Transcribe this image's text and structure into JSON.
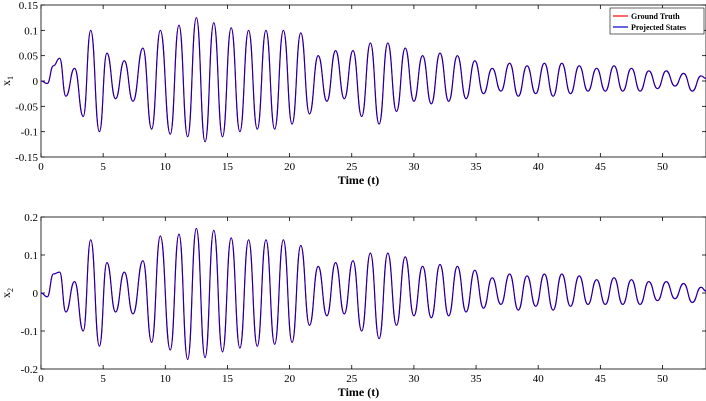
{
  "chart_data": [
    {
      "type": "line",
      "ylabel": "x",
      "ylabel_sub": "1",
      "xlabel": "Time (t)",
      "xlim": [
        0,
        53.5
      ],
      "ylim": [
        -0.15,
        0.15
      ],
      "xticks": [
        0,
        5,
        10,
        15,
        20,
        25,
        30,
        35,
        40,
        45,
        50
      ],
      "yticks": [
        -0.15,
        -0.1,
        -0.05,
        0,
        0.05,
        0.1,
        0.15
      ],
      "ytick_labels": [
        "-0.15",
        "-0.1",
        "-0.05",
        "0",
        "0.05",
        "0.1",
        "0.15"
      ],
      "legend": {
        "position": "top-right",
        "entries": [
          {
            "label": "Ground Truth",
            "color": "#ff0000"
          },
          {
            "label": "Projected States",
            "color": "#0000cc"
          }
        ]
      },
      "series": [
        {
          "name": "Ground Truth",
          "color": "#ff0000",
          "x": [
            0,
            0.5,
            1.0,
            1.5,
            2.0,
            2.7,
            3.4,
            4.0,
            4.7,
            5.3,
            6.0,
            6.7,
            7.4,
            8.2,
            8.9,
            9.6,
            10.4,
            11.1,
            11.8,
            12.5,
            13.2,
            13.9,
            14.6,
            15.3,
            16.0,
            16.7,
            17.4,
            18.1,
            18.8,
            19.5,
            20.2,
            20.9,
            21.6,
            22.3,
            23.0,
            23.7,
            24.4,
            25.1,
            25.8,
            26.5,
            27.2,
            27.9,
            28.6,
            29.3,
            30.0,
            30.7,
            31.4,
            32.1,
            32.8,
            33.5,
            34.2,
            34.9,
            35.6,
            36.3,
            37.0,
            37.7,
            38.4,
            39.1,
            39.8,
            40.5,
            41.2,
            41.9,
            42.6,
            43.3,
            44.0,
            44.7,
            45.4,
            46.1,
            46.8,
            47.5,
            48.2,
            48.9,
            49.6,
            50.3,
            51.0,
            51.7,
            52.4,
            53.1,
            53.5
          ],
          "y": [
            0,
            -0.005,
            0.03,
            0.045,
            -0.03,
            0.025,
            -0.07,
            0.1,
            -0.1,
            0.055,
            -0.035,
            0.04,
            -0.04,
            0.065,
            -0.095,
            0.1,
            -0.105,
            0.11,
            -0.11,
            0.125,
            -0.12,
            0.115,
            -0.11,
            0.105,
            -0.1,
            0.1,
            -0.095,
            0.1,
            -0.095,
            0.1,
            -0.085,
            0.095,
            -0.065,
            0.05,
            -0.04,
            0.06,
            -0.035,
            0.06,
            -0.07,
            0.075,
            -0.085,
            0.075,
            -0.06,
            0.065,
            -0.04,
            0.05,
            -0.045,
            0.055,
            -0.04,
            0.05,
            -0.035,
            0.04,
            -0.025,
            0.025,
            -0.02,
            0.035,
            -0.03,
            0.03,
            -0.025,
            0.035,
            -0.03,
            0.035,
            -0.025,
            0.03,
            -0.02,
            0.025,
            -0.02,
            0.03,
            -0.02,
            0.025,
            -0.02,
            0.02,
            -0.015,
            0.02,
            -0.01,
            0.015,
            -0.02,
            0.01,
            0.005
          ]
        },
        {
          "name": "Projected States",
          "color": "#0000cc",
          "x": [
            0,
            0.5,
            1.0,
            1.5,
            2.0,
            2.7,
            3.4,
            4.0,
            4.7,
            5.3,
            6.0,
            6.7,
            7.4,
            8.2,
            8.9,
            9.6,
            10.4,
            11.1,
            11.8,
            12.5,
            13.2,
            13.9,
            14.6,
            15.3,
            16.0,
            16.7,
            17.4,
            18.1,
            18.8,
            19.5,
            20.2,
            20.9,
            21.6,
            22.3,
            23.0,
            23.7,
            24.4,
            25.1,
            25.8,
            26.5,
            27.2,
            27.9,
            28.6,
            29.3,
            30.0,
            30.7,
            31.4,
            32.1,
            32.8,
            33.5,
            34.2,
            34.9,
            35.6,
            36.3,
            37.0,
            37.7,
            38.4,
            39.1,
            39.8,
            40.5,
            41.2,
            41.9,
            42.6,
            43.3,
            44.0,
            44.7,
            45.4,
            46.1,
            46.8,
            47.5,
            48.2,
            48.9,
            49.6,
            50.3,
            51.0,
            51.7,
            52.4,
            53.1,
            53.5
          ],
          "y": [
            0,
            -0.005,
            0.03,
            0.045,
            -0.03,
            0.025,
            -0.07,
            0.1,
            -0.1,
            0.055,
            -0.035,
            0.04,
            -0.04,
            0.065,
            -0.095,
            0.1,
            -0.105,
            0.11,
            -0.11,
            0.125,
            -0.12,
            0.115,
            -0.11,
            0.105,
            -0.1,
            0.1,
            -0.095,
            0.1,
            -0.095,
            0.1,
            -0.085,
            0.095,
            -0.065,
            0.05,
            -0.04,
            0.06,
            -0.035,
            0.06,
            -0.07,
            0.075,
            -0.085,
            0.075,
            -0.06,
            0.065,
            -0.04,
            0.05,
            -0.045,
            0.055,
            -0.04,
            0.05,
            -0.035,
            0.04,
            -0.025,
            0.025,
            -0.02,
            0.035,
            -0.03,
            0.03,
            -0.025,
            0.035,
            -0.03,
            0.035,
            -0.025,
            0.03,
            -0.02,
            0.025,
            -0.02,
            0.03,
            -0.02,
            0.025,
            -0.02,
            0.02,
            -0.015,
            0.02,
            -0.01,
            0.015,
            -0.02,
            0.01,
            0.005
          ]
        }
      ]
    },
    {
      "type": "line",
      "ylabel": "x",
      "ylabel_sub": "2",
      "xlabel": "Time (t)",
      "xlim": [
        0,
        53.5
      ],
      "ylim": [
        -0.2,
        0.2
      ],
      "xticks": [
        0,
        5,
        10,
        15,
        20,
        25,
        30,
        35,
        40,
        45,
        50
      ],
      "yticks": [
        -0.2,
        -0.1,
        0,
        0.1,
        0.2
      ],
      "ytick_labels": [
        "-0.2",
        "-0.1",
        "0",
        "0.1",
        "0.2"
      ],
      "series": [
        {
          "name": "Ground Truth",
          "color": "#ff0000",
          "x": [
            0,
            0.5,
            1.0,
            1.5,
            2.0,
            2.7,
            3.4,
            4.0,
            4.7,
            5.3,
            6.0,
            6.7,
            7.4,
            8.2,
            8.9,
            9.6,
            10.4,
            11.1,
            11.8,
            12.5,
            13.2,
            13.9,
            14.6,
            15.3,
            16.0,
            16.7,
            17.4,
            18.1,
            18.8,
            19.5,
            20.2,
            20.9,
            21.6,
            22.3,
            23.0,
            23.7,
            24.4,
            25.1,
            25.8,
            26.5,
            27.2,
            27.9,
            28.6,
            29.3,
            30.0,
            30.7,
            31.4,
            32.1,
            32.8,
            33.5,
            34.2,
            34.9,
            35.6,
            36.3,
            37.0,
            37.7,
            38.4,
            39.1,
            39.8,
            40.5,
            41.2,
            41.9,
            42.6,
            43.3,
            44.0,
            44.7,
            45.4,
            46.1,
            46.8,
            47.5,
            48.2,
            48.9,
            49.6,
            50.3,
            51.0,
            51.7,
            52.4,
            53.1,
            53.5
          ],
          "y": [
            0,
            -0.01,
            0.05,
            0.055,
            -0.05,
            0.03,
            -0.1,
            0.14,
            -0.14,
            0.08,
            -0.05,
            0.055,
            -0.055,
            0.085,
            -0.13,
            0.15,
            -0.15,
            0.155,
            -0.175,
            0.17,
            -0.17,
            0.165,
            -0.155,
            0.145,
            -0.145,
            0.14,
            -0.14,
            0.14,
            -0.135,
            0.14,
            -0.13,
            0.125,
            -0.085,
            0.07,
            -0.06,
            0.08,
            -0.055,
            0.085,
            -0.1,
            0.105,
            -0.12,
            0.105,
            -0.085,
            0.095,
            -0.06,
            0.07,
            -0.065,
            0.075,
            -0.06,
            0.07,
            -0.05,
            0.06,
            -0.04,
            0.04,
            -0.03,
            0.05,
            -0.045,
            0.045,
            -0.035,
            0.05,
            -0.045,
            0.05,
            -0.035,
            0.045,
            -0.03,
            0.035,
            -0.03,
            0.04,
            -0.03,
            0.035,
            -0.03,
            0.03,
            -0.02,
            0.03,
            -0.015,
            0.025,
            -0.025,
            0.015,
            0.005
          ]
        },
        {
          "name": "Projected States",
          "color": "#0000cc",
          "x": [
            0,
            0.5,
            1.0,
            1.5,
            2.0,
            2.7,
            3.4,
            4.0,
            4.7,
            5.3,
            6.0,
            6.7,
            7.4,
            8.2,
            8.9,
            9.6,
            10.4,
            11.1,
            11.8,
            12.5,
            13.2,
            13.9,
            14.6,
            15.3,
            16.0,
            16.7,
            17.4,
            18.1,
            18.8,
            19.5,
            20.2,
            20.9,
            21.6,
            22.3,
            23.0,
            23.7,
            24.4,
            25.1,
            25.8,
            26.5,
            27.2,
            27.9,
            28.6,
            29.3,
            30.0,
            30.7,
            31.4,
            32.1,
            32.8,
            33.5,
            34.2,
            34.9,
            35.6,
            36.3,
            37.0,
            37.7,
            38.4,
            39.1,
            39.8,
            40.5,
            41.2,
            41.9,
            42.6,
            43.3,
            44.0,
            44.7,
            45.4,
            46.1,
            46.8,
            47.5,
            48.2,
            48.9,
            49.6,
            50.3,
            51.0,
            51.7,
            52.4,
            53.1,
            53.5
          ],
          "y": [
            0,
            -0.01,
            0.05,
            0.055,
            -0.05,
            0.03,
            -0.1,
            0.14,
            -0.14,
            0.08,
            -0.05,
            0.055,
            -0.055,
            0.085,
            -0.13,
            0.15,
            -0.15,
            0.155,
            -0.175,
            0.17,
            -0.17,
            0.165,
            -0.155,
            0.145,
            -0.145,
            0.14,
            -0.14,
            0.14,
            -0.135,
            0.14,
            -0.13,
            0.125,
            -0.085,
            0.07,
            -0.06,
            0.08,
            -0.055,
            0.085,
            -0.1,
            0.105,
            -0.12,
            0.105,
            -0.085,
            0.095,
            -0.06,
            0.07,
            -0.065,
            0.075,
            -0.06,
            0.07,
            -0.05,
            0.06,
            -0.04,
            0.04,
            -0.03,
            0.05,
            -0.045,
            0.045,
            -0.035,
            0.05,
            -0.045,
            0.05,
            -0.035,
            0.045,
            -0.03,
            0.035,
            -0.03,
            0.04,
            -0.03,
            0.035,
            -0.03,
            0.03,
            -0.02,
            0.03,
            -0.015,
            0.025,
            -0.025,
            0.015,
            0.005
          ]
        }
      ]
    }
  ]
}
